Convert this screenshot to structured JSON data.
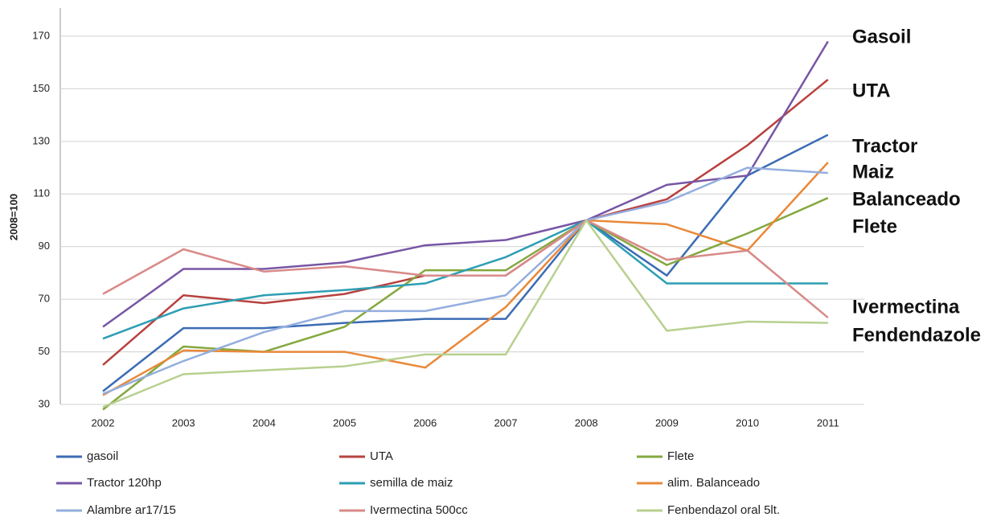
{
  "chart_data": {
    "type": "line",
    "y_label": "2008=100",
    "categories": [
      "2002",
      "2003",
      "2004",
      "2005",
      "2006",
      "2007",
      "2008",
      "2009",
      "2010",
      "2011"
    ],
    "ylim": [
      30,
      170
    ],
    "yticks": [
      30,
      50,
      70,
      90,
      110,
      130,
      150,
      170
    ],
    "grid": true,
    "series": [
      {
        "name": "gasoil",
        "color": "#3b6cb4",
        "values": [
          35,
          59,
          59,
          61,
          62.5,
          62.5,
          100,
          79,
          117,
          132.5
        ]
      },
      {
        "name": "UTA",
        "color": "#b8413f",
        "values": [
          45,
          71.5,
          68.5,
          72,
          79,
          79,
          100,
          108,
          128.5,
          153.5
        ]
      },
      {
        "name": "Flete",
        "color": "#84a83f",
        "values": [
          28,
          52,
          50,
          59.5,
          81,
          81,
          100,
          83,
          95,
          108.5
        ]
      },
      {
        "name": "Tractor 120hp",
        "color": "#7756a4",
        "values": [
          59.5,
          81.5,
          81.5,
          84,
          90.5,
          92.5,
          100,
          113.5,
          117,
          168
        ]
      },
      {
        "name": "semilla de maiz",
        "color": "#2d9eb3",
        "values": [
          55,
          66.5,
          71.5,
          73.5,
          76,
          86,
          100,
          76,
          76,
          76
        ]
      },
      {
        "name": "alim. Balanceado",
        "color": "#e8893a",
        "values": [
          33.5,
          50.5,
          50,
          50,
          44,
          67,
          100,
          98.5,
          88.5,
          122
        ]
      },
      {
        "name": "Alambre ar17/15",
        "color": "#94aede",
        "values": [
          34,
          46.5,
          57.5,
          65.5,
          65.5,
          71.5,
          100,
          107,
          120,
          118
        ]
      },
      {
        "name": "Ivermectina 500cc",
        "color": "#d88a88",
        "values": [
          72,
          89,
          80.5,
          82.5,
          79,
          79,
          100,
          85,
          88.5,
          63
        ]
      },
      {
        "name": "Fenbendazol oral 5lt.",
        "color": "#b8d08f",
        "values": [
          29,
          41.5,
          43,
          44.5,
          49,
          49,
          100,
          58,
          61.5,
          61
        ]
      }
    ],
    "annotations": [
      "Gasoil",
      "UTA",
      "Tractor",
      "Maiz",
      "Balanceado",
      "Flete",
      "Ivermectina",
      "Fendendazole"
    ]
  }
}
